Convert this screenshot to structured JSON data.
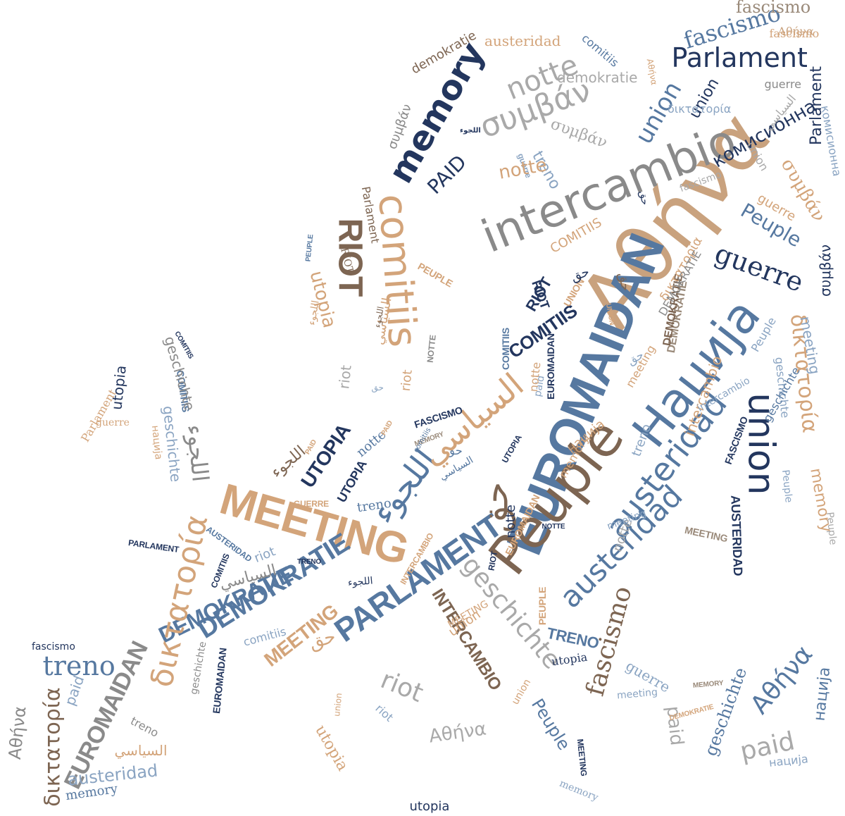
{
  "palette": {
    "navy": "#23365e",
    "blue": "#5678a0",
    "lightblue": "#8aa4c2",
    "tan": "#d3a47a",
    "brown": "#7d6552",
    "gray": "#8a8a8a",
    "lightgray": "#a9a9a9",
    "sand": "#c9a27e",
    "taupe": "#9a8a7a"
  },
  "words": [
    {
      "text": "Αθήνα",
      "color": "sand"
    },
    {
      "text": "EUROMAIDAN",
      "color": "blue"
    },
    {
      "text": "Peuple",
      "color": "brown"
    },
    {
      "text": "Нација",
      "color": "blue"
    },
    {
      "text": "intercambio",
      "color": "gray"
    },
    {
      "text": "MEETING",
      "color": "tan"
    },
    {
      "text": "PARLAMENT",
      "color": "blue"
    },
    {
      "text": "austeridad",
      "color": "blue"
    },
    {
      "text": "austeridad",
      "color": "blue"
    },
    {
      "text": "union",
      "color": "navy"
    },
    {
      "text": "comitiis",
      "color": "tan"
    },
    {
      "text": "memory",
      "color": "navy"
    },
    {
      "text": "RIOT",
      "color": "brown"
    },
    {
      "text": "συμβάν",
      "color": "lightgray"
    },
    {
      "text": "notte",
      "color": "lightgray"
    },
    {
      "text": "Parlament",
      "color": "navy"
    },
    {
      "text": "fascismo",
      "color": "blue"
    },
    {
      "text": "fascismo",
      "color": "taupe"
    },
    {
      "text": "Αθήνα",
      "color": "sand"
    },
    {
      "text": "union",
      "color": "blue"
    },
    {
      "text": "комисионна",
      "color": "navy"
    },
    {
      "text": "Parlament",
      "color": "navy"
    },
    {
      "text": "guerre",
      "color": "navy"
    },
    {
      "text": "Peuple",
      "color": "blue"
    },
    {
      "text": "δικτατορία",
      "color": "tan"
    },
    {
      "text": "meeting",
      "color": "lightblue"
    },
    {
      "text": "union",
      "color": "navy"
    },
    {
      "text": "memory",
      "color": "tan"
    },
    {
      "text": "geschichte",
      "color": "lightblue"
    },
    {
      "text": "Peuple",
      "color": "lightgray"
    },
    {
      "text": "AUSTERIDAD",
      "color": "navy"
    },
    {
      "text": "MEETING",
      "color": "taupe"
    },
    {
      "text": "fascismo",
      "color": "brown"
    },
    {
      "text": "geschichte",
      "color": "lightgray"
    },
    {
      "text": "Αθήνα",
      "color": "blue"
    },
    {
      "text": "нација",
      "color": "blue"
    },
    {
      "text": "geschichte",
      "color": "blue"
    },
    {
      "text": "paid",
      "color": "lightgray"
    },
    {
      "text": "paid",
      "color": "lightgray"
    },
    {
      "text": "нација",
      "color": "lightblue"
    },
    {
      "text": "guerre",
      "color": "lightblue"
    },
    {
      "text": "meeting",
      "color": "lightblue"
    },
    {
      "text": "MEMORY",
      "color": "taupe"
    },
    {
      "text": "DEMOKRATIE",
      "color": "tan"
    },
    {
      "text": "DEMOKRATIE",
      "color": "blue"
    },
    {
      "text": "DEMOKRATIE",
      "color": "taupe"
    },
    {
      "text": "MEETING",
      "color": "tan"
    },
    {
      "text": "INTERCAMBIO",
      "color": "brown"
    },
    {
      "text": "TRENO",
      "color": "blue"
    },
    {
      "text": "utopia",
      "color": "navy"
    },
    {
      "text": "Peuple",
      "color": "blue"
    },
    {
      "text": "MEETING",
      "color": "navy"
    },
    {
      "text": "memory",
      "color": "lightblue"
    },
    {
      "text": "riot",
      "color": "lightgray"
    },
    {
      "text": "Αθήνα",
      "color": "lightgray"
    },
    {
      "text": "riot",
      "color": "lightblue"
    },
    {
      "text": "union",
      "color": "tan"
    },
    {
      "text": "حق",
      "color": "tan"
    },
    {
      "text": "utopia",
      "color": "tan"
    },
    {
      "text": "utopia",
      "color": "navy"
    },
    {
      "text": "treno",
      "color": "blue"
    },
    {
      "text": "EUROMAIDAN",
      "color": "gray"
    },
    {
      "text": "δικτατορία",
      "color": "tan"
    },
    {
      "text": "δικτατορία",
      "color": "brown"
    },
    {
      "text": "paid",
      "color": "lightblue"
    },
    {
      "text": "Αθήνα",
      "color": "gray"
    },
    {
      "text": "fascismo",
      "color": "navy"
    },
    {
      "text": "austeridad",
      "color": "lightblue"
    },
    {
      "text": "memory",
      "color": "blue"
    },
    {
      "text": "treno",
      "color": "gray"
    },
    {
      "text": "السياسي",
      "color": "tan"
    },
    {
      "text": "geschichte",
      "color": "gray"
    },
    {
      "text": "EUROMAIDAN",
      "color": "navy"
    },
    {
      "text": "comitiis",
      "color": "lightblue"
    },
    {
      "text": "union",
      "color": "tan"
    },
    {
      "text": "MEETING",
      "color": "tan"
    },
    {
      "text": "DEMOKRATIE",
      "color": "blue"
    },
    {
      "text": "السياسي",
      "color": "gray"
    },
    {
      "text": "riot",
      "color": "lightblue"
    },
    {
      "text": "COMITIIS",
      "color": "navy"
    },
    {
      "text": "AUSTERIDAD",
      "color": "blue"
    },
    {
      "text": "PARLAMENT",
      "color": "navy"
    },
    {
      "text": "GUERRE",
      "color": "tan"
    },
    {
      "text": "TRENO",
      "color": "navy"
    },
    {
      "text": "اللجوء",
      "color": "navy"
    },
    {
      "text": "INTERCAMBIO",
      "color": "tan"
    },
    {
      "text": "UTOPIA",
      "color": "navy"
    },
    {
      "text": "UTOPIA",
      "color": "navy"
    },
    {
      "text": "treno",
      "color": "blue"
    },
    {
      "text": "اللجوء",
      "color": "blue"
    },
    {
      "text": "اللجوء",
      "color": "brown"
    },
    {
      "text": "PAID",
      "color": "tan"
    },
    {
      "text": "notte",
      "color": "blue"
    },
    {
      "text": "حق",
      "color": "blue"
    },
    {
      "text": "حق",
      "color": "brown"
    },
    {
      "text": "السياسي",
      "color": "tan"
    },
    {
      "text": "MEMORY",
      "color": "taupe"
    },
    {
      "text": "FASCISMO",
      "color": "navy"
    },
    {
      "text": "PAID",
      "color": "tan"
    },
    {
      "text": "السياسي",
      "color": "blue"
    },
    {
      "text": "UTOPIA",
      "color": "navy"
    },
    {
      "text": "EUROMAIDAN",
      "color": "tan"
    },
    {
      "text": "NOTTE",
      "color": "navy"
    },
    {
      "text": "notte",
      "color": "navy"
    },
    {
      "text": "RIOT",
      "color": "navy"
    },
    {
      "text": "notte",
      "color": "lightgray"
    },
    {
      "text": "PEUPLE",
      "color": "tan"
    },
    {
      "text": "union",
      "color": "tan"
    },
    {
      "text": "COMITIIS",
      "color": "navy"
    },
    {
      "text": "RIOT",
      "color": "navy"
    },
    {
      "text": "UNION",
      "color": "tan"
    },
    {
      "text": "EUROMAIDAN",
      "color": "navy"
    },
    {
      "text": "paid",
      "color": "lightblue"
    },
    {
      "text": "COMITIIS",
      "color": "blue"
    },
    {
      "text": "notte",
      "color": "tan"
    },
    {
      "text": "حق",
      "color": "navy"
    },
    {
      "text": "meeting",
      "color": "tan"
    },
    {
      "text": "DEMOKRATIE",
      "color": "brown"
    },
    {
      "text": "нација",
      "color": "tan"
    },
    {
      "text": "treno",
      "color": "lightblue"
    },
    {
      "text": "intercambio",
      "color": "tan"
    },
    {
      "text": "FASCISMO",
      "color": "navy"
    },
    {
      "text": "intercambio",
      "color": "lightblue"
    },
    {
      "text": "geschichte",
      "color": "blue"
    },
    {
      "text": "Peuple",
      "color": "lightblue"
    },
    {
      "text": "meeting",
      "color": "lightblue"
    },
    {
      "text": "memory",
      "color": "tan"
    },
    {
      "text": "Peuple",
      "color": "lightblue"
    },
    {
      "text": "حق",
      "color": "lightblue"
    },
    {
      "text": "riot",
      "color": "tan"
    },
    {
      "text": "riot",
      "color": "lightgray"
    },
    {
      "text": "NOTTE",
      "color": "gray"
    },
    {
      "text": "حق",
      "color": "lightblue"
    },
    {
      "text": "السياسي",
      "color": "tan"
    },
    {
      "text": "comitiis",
      "color": "blue"
    },
    {
      "text": "COMITIIS",
      "color": "blue"
    },
    {
      "text": "utopia",
      "color": "tan"
    },
    {
      "text": "PEUPLE",
      "color": "tan"
    },
    {
      "text": "اللجوء",
      "color": "tan"
    },
    {
      "text": "اللجوء",
      "color": "brown"
    },
    {
      "text": "PEUPLE",
      "color": "blue"
    },
    {
      "text": "RIOT",
      "color": "brown"
    },
    {
      "text": "συμβάν",
      "color": "gray"
    },
    {
      "text": "Parlament",
      "color": "brown"
    },
    {
      "text": "اللجوء",
      "color": "navy"
    },
    {
      "text": "PAID",
      "color": "navy"
    },
    {
      "text": "guerre",
      "color": "lightblue"
    },
    {
      "text": "COMITIIS",
      "color": "tan"
    },
    {
      "text": "treno",
      "color": "lightblue"
    },
    {
      "text": "notte",
      "color": "tan"
    },
    {
      "text": "συμβάν",
      "color": "lightgray"
    },
    {
      "text": "demokratie",
      "color": "brown"
    },
    {
      "text": "austeridad",
      "color": "tan"
    },
    {
      "text": "comitiis",
      "color": "blue"
    },
    {
      "text": "demokratie",
      "color": "lightgray"
    },
    {
      "text": "guerre",
      "color": "gray"
    },
    {
      "text": "fascismo",
      "color": "tan"
    },
    {
      "text": "Αθήνα",
      "color": "tan"
    },
    {
      "text": "السياسي",
      "color": "lightgray"
    },
    {
      "text": "δικτατορία",
      "color": "lightblue"
    },
    {
      "text": "union",
      "color": "lightgray"
    },
    {
      "text": "fascismo",
      "color": "lightgray"
    },
    {
      "text": "комисионна",
      "color": "lightblue"
    },
    {
      "text": "συμβάν",
      "color": "tan"
    },
    {
      "text": "guerre",
      "color": "tan"
    },
    {
      "text": "συμβάν",
      "color": "navy"
    },
    {
      "text": "حق",
      "color": "navy"
    },
    {
      "text": "δικτατορία",
      "color": "tan"
    },
    {
      "text": "UNION",
      "color": "tan"
    },
    {
      "text": "DEMOKRATIE",
      "color": "gray"
    },
    {
      "text": "RIOT",
      "color": "navy"
    },
    {
      "text": "حق",
      "color": "brown"
    },
    {
      "text": "Parlament",
      "color": "tan"
    },
    {
      "text": "utopia",
      "color": "navy"
    },
    {
      "text": "guerre",
      "color": "tan"
    },
    {
      "text": "COMITIIS",
      "color": "navy"
    },
    {
      "text": "geschichte",
      "color": "gray"
    },
    {
      "text": "اللجوء",
      "color": "gray"
    },
    {
      "text": "нација",
      "color": "tan"
    },
    {
      "text": "geschichte",
      "color": "lightblue"
    },
    {
      "text": "PARLAMENT",
      "color": "navy"
    },
    {
      "text": "fascismo",
      "color": "blue"
    },
    {
      "text": "treno",
      "color": "blue"
    },
    {
      "text": "δικτατορία",
      "color": "tan"
    },
    {
      "text": "paid",
      "color": "lightblue"
    },
    {
      "text": "EUROMAIDAN",
      "color": "gray"
    },
    {
      "text": "Αθήνα",
      "color": "gray"
    },
    {
      "text": "δικτατορία",
      "color": "brown"
    },
    {
      "text": "السياسي",
      "color": "tan"
    },
    {
      "text": "treno",
      "color": "gray"
    },
    {
      "text": "austeridad",
      "color": "blue"
    },
    {
      "text": "memory",
      "color": "blue"
    },
    {
      "text": "utopia",
      "color": "tan"
    },
    {
      "text": "geschichte",
      "color": "gray"
    },
    {
      "text": "EUROMAIDAN",
      "color": "navy"
    },
    {
      "text": "comitiis",
      "color": "lightblue"
    },
    {
      "text": "riot",
      "color": "lightblue"
    },
    {
      "text": "Αθήνα",
      "color": "lightgray"
    },
    {
      "text": "memory",
      "color": "lightblue"
    },
    {
      "text": "MEETING",
      "color": "navy"
    },
    {
      "text": "utopia",
      "color": "navy"
    }
  ]
}
